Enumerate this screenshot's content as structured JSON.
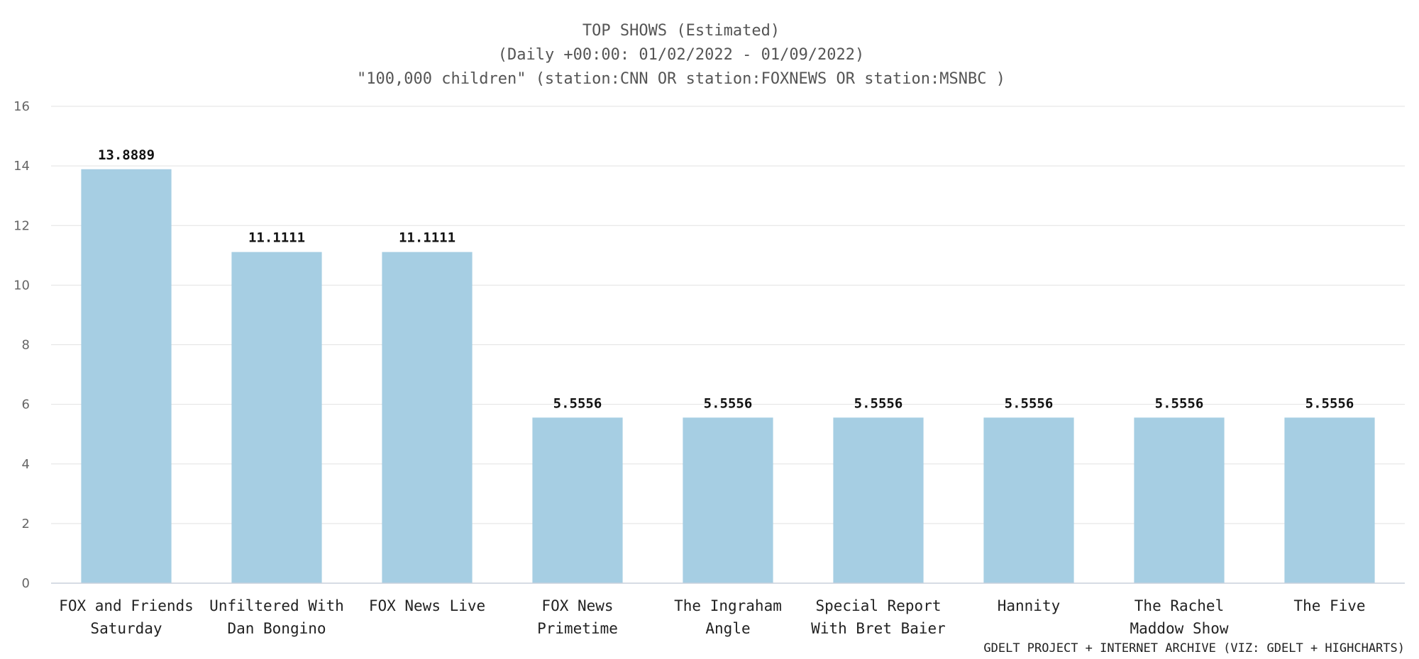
{
  "chart_data": {
    "type": "bar",
    "title_lines": [
      "TOP SHOWS (Estimated)",
      "(Daily +00:00: 01/02/2022 - 01/09/2022)",
      "\"100,000 children\" (station:CNN OR station:FOXNEWS OR station:MSNBC )"
    ],
    "categories": [
      [
        "FOX and Friends",
        "Saturday"
      ],
      [
        "Unfiltered With",
        "Dan Bongino"
      ],
      [
        "FOX News Live"
      ],
      [
        "FOX News",
        "Primetime"
      ],
      [
        "The Ingraham",
        "Angle"
      ],
      [
        "Special Report",
        "With Bret Baier"
      ],
      [
        "Hannity"
      ],
      [
        "The Rachel",
        "Maddow Show"
      ],
      [
        "The Five"
      ]
    ],
    "values": [
      13.8889,
      11.1111,
      11.1111,
      5.5556,
      5.5556,
      5.5556,
      5.5556,
      5.5556,
      5.5556
    ],
    "data_labels": [
      "13.8889",
      "11.1111",
      "11.1111",
      "5.5556",
      "5.5556",
      "5.5556",
      "5.5556",
      "5.5556",
      "5.5556"
    ],
    "ylim": [
      0,
      16
    ],
    "yticks": [
      0,
      2,
      4,
      6,
      8,
      10,
      12,
      14,
      16
    ],
    "grid": true,
    "legend": "none",
    "bar_color": "#a6cee3",
    "credit": "GDELT PROJECT + INTERNET ARCHIVE (VIZ: GDELT + HIGHCHARTS)"
  }
}
